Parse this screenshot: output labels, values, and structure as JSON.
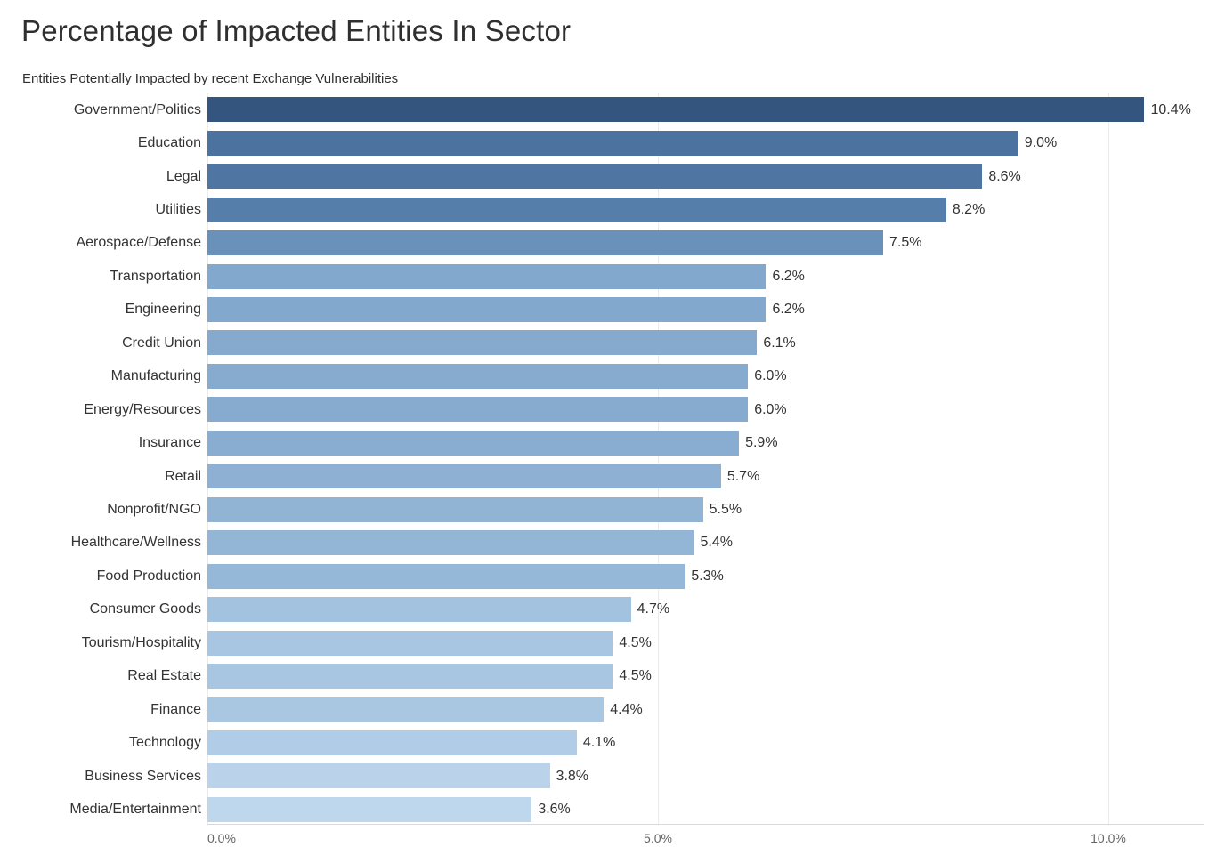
{
  "page": {
    "title": "Percentage of Impacted Entities In Sector",
    "subtitle": "Entities Potentially Impacted by recent Exchange Vulnerabilities"
  },
  "chart_data": {
    "type": "bar",
    "orientation": "horizontal",
    "title": "Percentage of Impacted Entities In Sector",
    "subtitle": "Entities Potentially Impacted by recent Exchange Vulnerabilities",
    "xlabel": "",
    "ylabel": "",
    "xlim": [
      0,
      11.1
    ],
    "grid": "vertical-faint",
    "legend": "none",
    "value_unit": "%",
    "palette": {
      "darkest": "#33557e",
      "lightest": "#bfd7ec"
    },
    "x_ticks": [
      {
        "value": 0,
        "label": "0.0%"
      },
      {
        "value": 5,
        "label": "5.0%"
      },
      {
        "value": 10,
        "label": "10.0%"
      }
    ],
    "series": [
      {
        "category": "Government/Politics",
        "value": 10.4,
        "label": "10.4%",
        "color": "#33557e"
      },
      {
        "category": "Education",
        "value": 9.0,
        "label": "9.0%",
        "color": "#4c72a0"
      },
      {
        "category": "Legal",
        "value": 8.6,
        "label": "8.6%",
        "color": "#4f76a3"
      },
      {
        "category": "Utilities",
        "value": 8.2,
        "label": "8.2%",
        "color": "#567eaa"
      },
      {
        "category": "Aerospace/Defense",
        "value": 7.5,
        "label": "7.5%",
        "color": "#6a91b9"
      },
      {
        "category": "Transportation",
        "value": 6.2,
        "label": "6.2%",
        "color": "#83a8cd"
      },
      {
        "category": "Engineering",
        "value": 6.2,
        "label": "6.2%",
        "color": "#83a8cd"
      },
      {
        "category": "Credit Union",
        "value": 6.1,
        "label": "6.1%",
        "color": "#85aace"
      },
      {
        "category": "Manufacturing",
        "value": 6.0,
        "label": "6.0%",
        "color": "#87abcf"
      },
      {
        "category": "Energy/Resources",
        "value": 6.0,
        "label": "6.0%",
        "color": "#87abcf"
      },
      {
        "category": "Insurance",
        "value": 5.9,
        "label": "5.9%",
        "color": "#89add0"
      },
      {
        "category": "Retail",
        "value": 5.7,
        "label": "5.7%",
        "color": "#8db0d3"
      },
      {
        "category": "Nonprofit/NGO",
        "value": 5.5,
        "label": "5.5%",
        "color": "#91b4d5"
      },
      {
        "category": "Healthcare/Wellness",
        "value": 5.4,
        "label": "5.4%",
        "color": "#93b5d6"
      },
      {
        "category": "Food Production",
        "value": 5.3,
        "label": "5.3%",
        "color": "#95b7d8"
      },
      {
        "category": "Consumer Goods",
        "value": 4.7,
        "label": "4.7%",
        "color": "#a3c2df"
      },
      {
        "category": "Tourism/Hospitality",
        "value": 4.5,
        "label": "4.5%",
        "color": "#a8c5e1"
      },
      {
        "category": "Real Estate",
        "value": 4.5,
        "label": "4.5%",
        "color": "#a8c5e1"
      },
      {
        "category": "Finance",
        "value": 4.4,
        "label": "4.4%",
        "color": "#aac7e2"
      },
      {
        "category": "Technology",
        "value": 4.1,
        "label": "4.1%",
        "color": "#b1cce6"
      },
      {
        "category": "Business Services",
        "value": 3.8,
        "label": "3.8%",
        "color": "#bad3ea"
      },
      {
        "category": "Media/Entertainment",
        "value": 3.6,
        "label": "3.6%",
        "color": "#bfd7ec"
      }
    ]
  },
  "colors": {
    "background": "#ffffff",
    "title_text": "#2f2f2f",
    "label_text": "#333333",
    "tick_text": "#646464",
    "gridline": "#ebebeb",
    "axis_line": "#d9d9d9"
  }
}
